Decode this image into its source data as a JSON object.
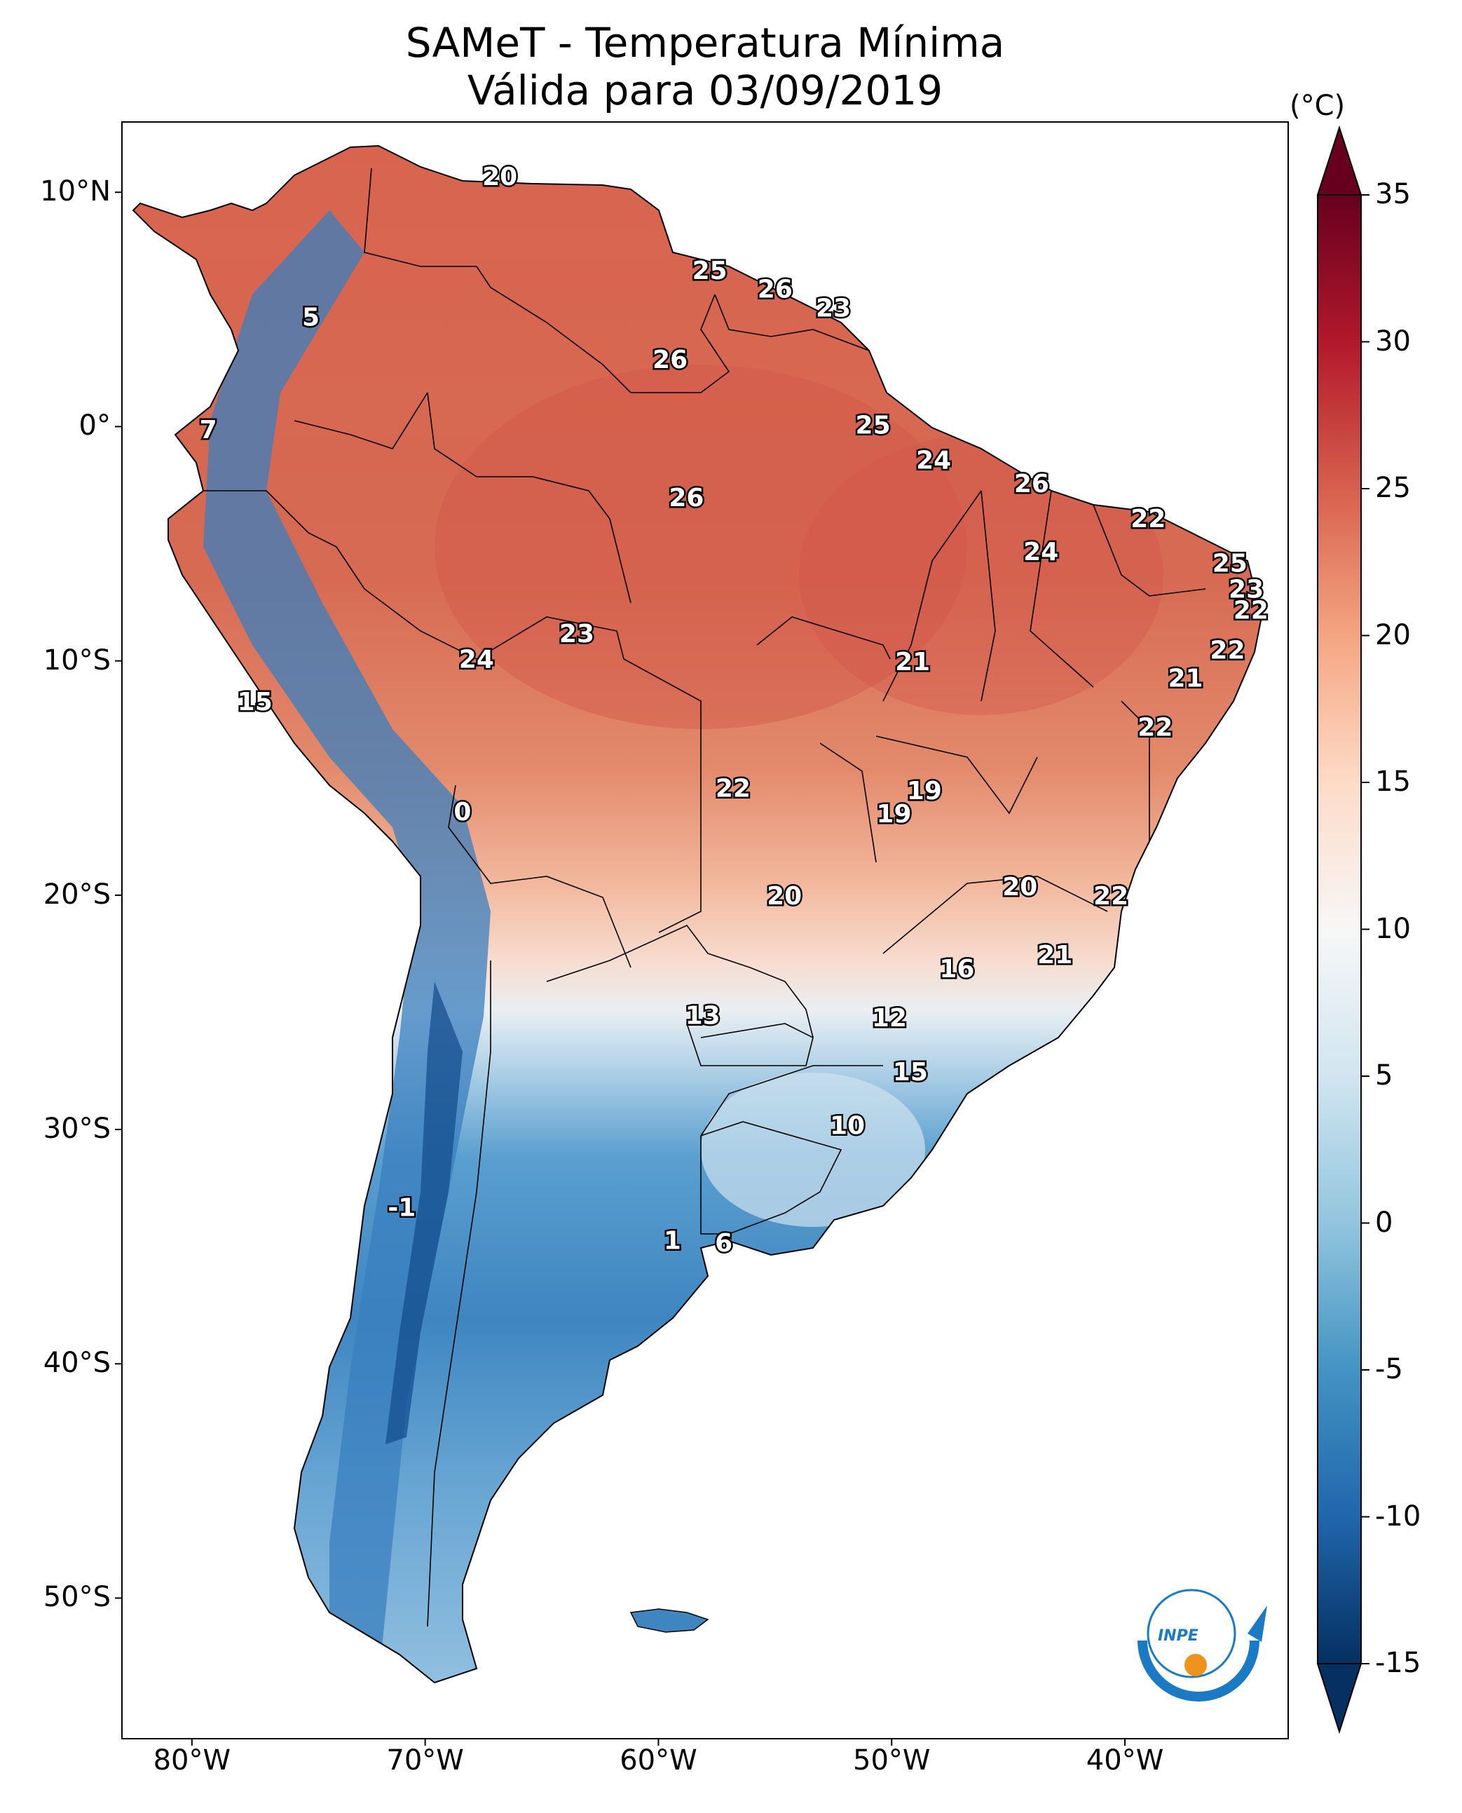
{
  "title": {
    "line1": "SAMeT - Temperatura Mínima",
    "line2": "Válida para 03/09/2019"
  },
  "map": {
    "lon_range": [
      -83,
      -33
    ],
    "lat_range": [
      -56,
      13
    ],
    "lat_ticks": [
      "10°N",
      "0°",
      "10°S",
      "20°S",
      "30°S",
      "40°S",
      "50°S"
    ],
    "lon_ticks": [
      "80°W",
      "70°W",
      "60°W",
      "50°W",
      "40°W"
    ],
    "value_labels": [
      {
        "text": "20",
        "lon": -66.8,
        "lat": 10.6
      },
      {
        "text": "25",
        "lon": -57.8,
        "lat": 6.6
      },
      {
        "text": "26",
        "lon": -55.0,
        "lat": 5.8
      },
      {
        "text": "23",
        "lon": -52.5,
        "lat": 5.0
      },
      {
        "text": "5",
        "lon": -74.9,
        "lat": 4.6
      },
      {
        "text": "26",
        "lon": -59.5,
        "lat": 2.8
      },
      {
        "text": "7",
        "lon": -79.3,
        "lat": -0.2
      },
      {
        "text": "25",
        "lon": -50.8,
        "lat": 0.0
      },
      {
        "text": "24",
        "lon": -48.2,
        "lat": -1.5
      },
      {
        "text": "26",
        "lon": -44.0,
        "lat": -2.5
      },
      {
        "text": "22",
        "lon": -39.0,
        "lat": -4.0
      },
      {
        "text": "26",
        "lon": -58.8,
        "lat": -3.1
      },
      {
        "text": "24",
        "lon": -43.6,
        "lat": -5.4
      },
      {
        "text": "25",
        "lon": -35.5,
        "lat": -5.9
      },
      {
        "text": "23",
        "lon": -34.8,
        "lat": -7.0
      },
      {
        "text": "22",
        "lon": -34.6,
        "lat": -7.9
      },
      {
        "text": "23",
        "lon": -63.5,
        "lat": -8.9
      },
      {
        "text": "24",
        "lon": -67.8,
        "lat": -10.0
      },
      {
        "text": "21",
        "lon": -49.1,
        "lat": -10.1
      },
      {
        "text": "22",
        "lon": -35.6,
        "lat": -9.6
      },
      {
        "text": "15",
        "lon": -77.3,
        "lat": -11.8
      },
      {
        "text": "21",
        "lon": -37.4,
        "lat": -10.8
      },
      {
        "text": "22",
        "lon": -38.7,
        "lat": -12.9
      },
      {
        "text": "22",
        "lon": -56.8,
        "lat": -15.5
      },
      {
        "text": "19",
        "lon": -48.6,
        "lat": -15.6
      },
      {
        "text": "19",
        "lon": -49.9,
        "lat": -16.6
      },
      {
        "text": "0",
        "lon": -68.4,
        "lat": -16.5
      },
      {
        "text": "20",
        "lon": -44.5,
        "lat": -19.7
      },
      {
        "text": "22",
        "lon": -40.6,
        "lat": -20.1
      },
      {
        "text": "20",
        "lon": -54.6,
        "lat": -20.1
      },
      {
        "text": "21",
        "lon": -43.0,
        "lat": -22.6
      },
      {
        "text": "16",
        "lon": -47.2,
        "lat": -23.2
      },
      {
        "text": "13",
        "lon": -58.1,
        "lat": -25.2
      },
      {
        "text": "12",
        "lon": -50.1,
        "lat": -25.3
      },
      {
        "text": "15",
        "lon": -49.2,
        "lat": -27.6
      },
      {
        "text": "10",
        "lon": -51.9,
        "lat": -29.9
      },
      {
        "text": "-1",
        "lon": -71.0,
        "lat": -33.4
      },
      {
        "text": "1",
        "lon": -59.4,
        "lat": -34.8
      },
      {
        "text": "6",
        "lon": -57.2,
        "lat": -34.9
      }
    ]
  },
  "colorbar": {
    "unit": "(°C)",
    "min": -15,
    "max": 35,
    "ticks": [
      "35",
      "30",
      "25",
      "20",
      "15",
      "10",
      "5",
      "0",
      "-5",
      "-10",
      "-15"
    ],
    "colormap": "RdBu_r",
    "colors": [
      "#053061",
      "#2166ac",
      "#4393c3",
      "#92c5de",
      "#d1e5f0",
      "#f7f7f7",
      "#fddbc7",
      "#f4a582",
      "#d6604d",
      "#b2182b",
      "#67001f"
    ]
  },
  "logo": {
    "text": "INPE",
    "colors": {
      "blue": "#1a7bc4",
      "orange": "#f0931e"
    }
  }
}
